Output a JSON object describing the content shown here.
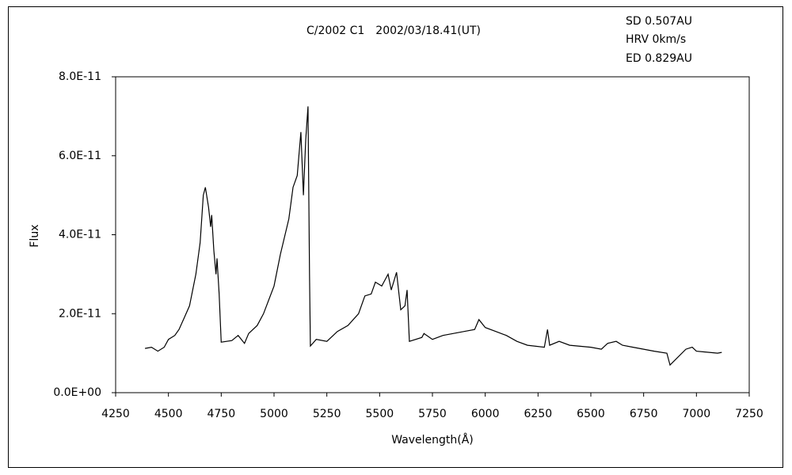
{
  "chart_data": {
    "type": "line",
    "title": "C/2002 C1　2002/03/18.41(UT)",
    "annotations": [
      "SD 0.507AU",
      "HRV 0km/s",
      "ED 0.829AU"
    ],
    "x_label": "Wavelength(Å)",
    "y_label": "Flux",
    "color": "#000000",
    "x": [
      4389,
      4420,
      4450,
      4480,
      4500,
      4530,
      4550,
      4575,
      4600,
      4630,
      4650,
      4665,
      4675,
      4690,
      4700,
      4705,
      4715,
      4725,
      4730,
      4740,
      4750,
      4800,
      4830,
      4860,
      4880,
      4920,
      4950,
      5000,
      5030,
      5070,
      5090,
      5110,
      5127,
      5139,
      5150,
      5161,
      5168,
      5172,
      5200,
      5250,
      5300,
      5350,
      5400,
      5430,
      5460,
      5480,
      5510,
      5540,
      5555,
      5580,
      5600,
      5620,
      5630,
      5641,
      5700,
      5710,
      5750,
      5800,
      5850,
      5900,
      5950,
      5970,
      6000,
      6050,
      6100,
      6150,
      6200,
      6280,
      6295,
      6305,
      6350,
      6400,
      6500,
      6550,
      6580,
      6620,
      6650,
      6700,
      6800,
      6860,
      6875,
      6950,
      6980,
      7000,
      7100,
      7120
    ],
    "values": [
      1.12e-11,
      1.15e-11,
      1.05e-11,
      1.15e-11,
      1.35e-11,
      1.45e-11,
      1.6e-11,
      1.9e-11,
      2.2e-11,
      3e-11,
      3.8e-11,
      5e-11,
      5.2e-11,
      4.7e-11,
      4.2e-11,
      4.5e-11,
      3.6e-11,
      3e-11,
      3.4e-11,
      2.5e-11,
      1.28e-11,
      1.32e-11,
      1.45e-11,
      1.25e-11,
      1.5e-11,
      1.7e-11,
      2e-11,
      2.7e-11,
      3.5e-11,
      4.4e-11,
      5.2e-11,
      5.5e-11,
      6.6e-11,
      5e-11,
      6.4e-11,
      7.25e-11,
      3e-11,
      1.18e-11,
      1.35e-11,
      1.3e-11,
      1.55e-11,
      1.7e-11,
      2e-11,
      2.45e-11,
      2.5e-11,
      2.8e-11,
      2.7e-11,
      3e-11,
      2.6e-11,
      3.05e-11,
      2.1e-11,
      2.2e-11,
      2.6e-11,
      1.3e-11,
      1.4e-11,
      1.5e-11,
      1.35e-11,
      1.45e-11,
      1.5e-11,
      1.55e-11,
      1.6e-11,
      1.85e-11,
      1.65e-11,
      1.55e-11,
      1.45e-11,
      1.3e-11,
      1.2e-11,
      1.15e-11,
      1.6e-11,
      1.2e-11,
      1.3e-11,
      1.2e-11,
      1.15e-11,
      1.1e-11,
      1.25e-11,
      1.3e-11,
      1.2e-11,
      1.15e-11,
      1.05e-11,
      1e-11,
      7e-12,
      1.1e-11,
      1.15e-11,
      1.05e-11,
      1e-11,
      1.02e-11
    ],
    "xlim": [
      4250,
      7250
    ],
    "xticks": [
      4250,
      4500,
      4750,
      5000,
      5250,
      5500,
      5750,
      6000,
      6250,
      6500,
      6750,
      7000,
      7250
    ],
    "ylim": [
      0,
      8e-11
    ],
    "yticks": [
      {
        "value": 0,
        "label": "0.0E+00"
      },
      {
        "value": 2e-11,
        "label": "2.0E-11"
      },
      {
        "value": 4e-11,
        "label": "4.0E-11"
      },
      {
        "value": 6e-11,
        "label": "6.0E-11"
      },
      {
        "value": 8e-11,
        "label": "8.0E-11"
      }
    ]
  }
}
